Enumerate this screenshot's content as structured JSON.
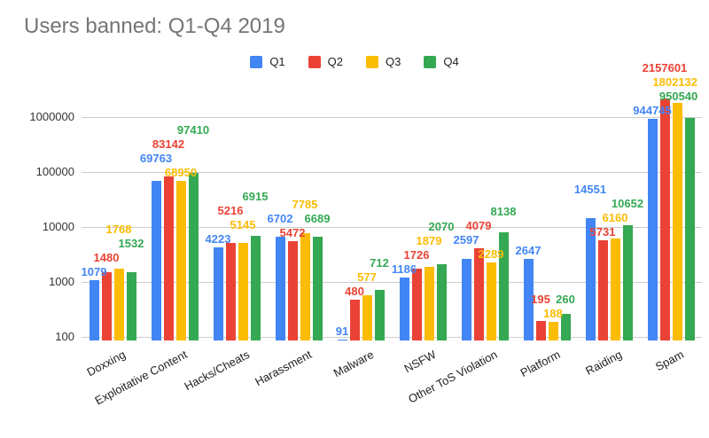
{
  "title": "Users banned: Q1-Q4 2019",
  "chart_data": {
    "type": "bar",
    "title": "Users banned: Q1-Q4 2019",
    "scale": "log",
    "grid": true,
    "legend_position": "top",
    "ylim": [
      100,
      1000000
    ],
    "y_ticks": [
      "100",
      "1000",
      "10000",
      "100000",
      "1000000"
    ],
    "categories": [
      "Doxxing",
      "Exploitative Content",
      "Hacks/Cheats",
      "Harassment",
      "Malware",
      "NSFW",
      "Other ToS Violation",
      "Platform",
      "Raiding",
      "Spam"
    ],
    "series": [
      {
        "name": "Q1",
        "color": "#4285F4",
        "values": [
          1079,
          69763,
          4223,
          6702,
          91,
          1186,
          2597,
          2647,
          14551,
          944745
        ]
      },
      {
        "name": "Q2",
        "color": "#EA4335",
        "values": [
          1480,
          83142,
          5216,
          5472,
          480,
          1726,
          4079,
          195,
          5731,
          2157601
        ]
      },
      {
        "name": "Q3",
        "color": "#FBBC04",
        "values": [
          1768,
          68950,
          5145,
          7785,
          577,
          1879,
          2289,
          188,
          6160,
          1802132
        ]
      },
      {
        "name": "Q4",
        "color": "#34A853",
        "values": [
          1532,
          97410,
          6915,
          6689,
          712,
          2070,
          8138,
          260,
          10652,
          950540
        ]
      }
    ]
  }
}
